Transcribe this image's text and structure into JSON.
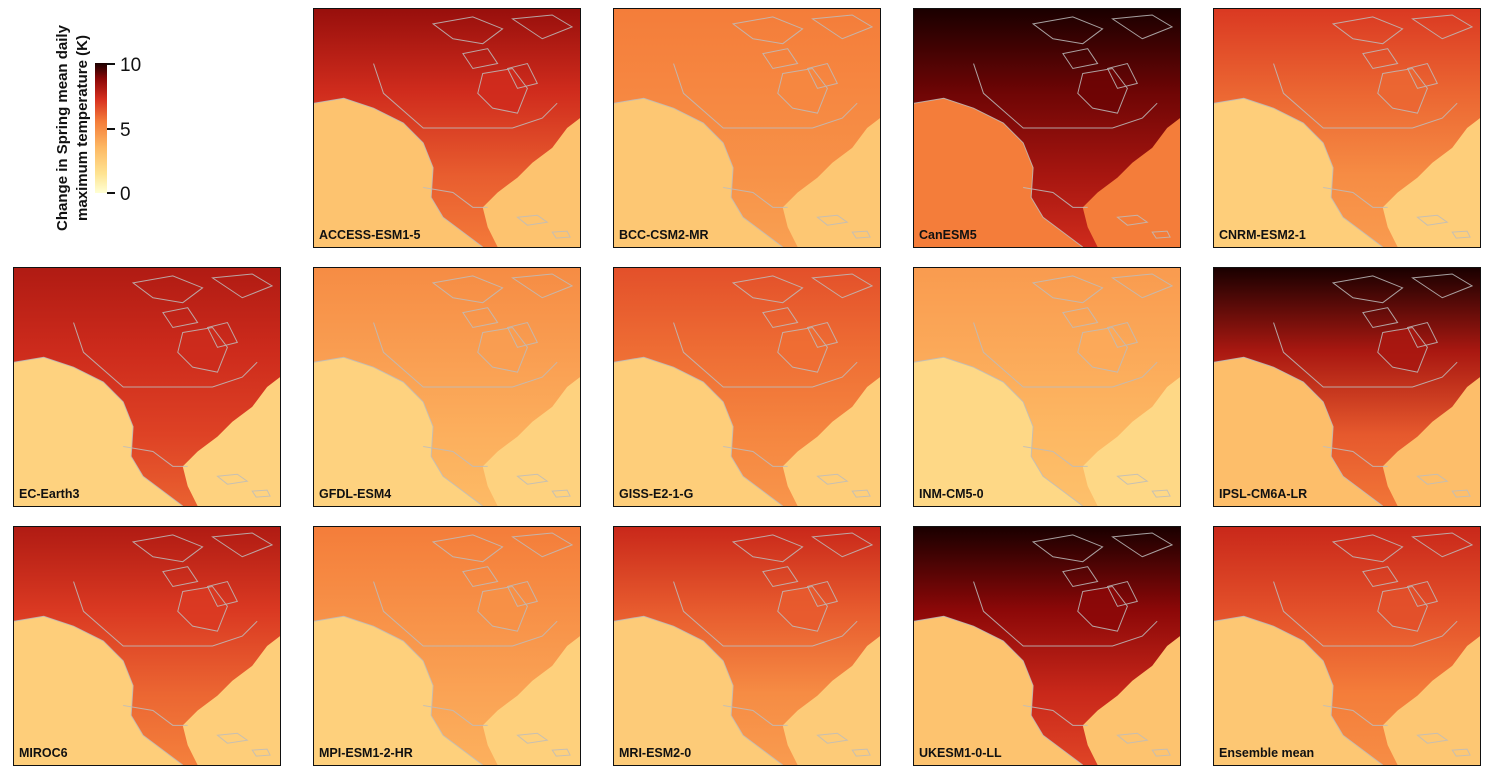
{
  "legend": {
    "title_line1": "Change in Spring mean daily",
    "title_line2": "maximum temperature (K)",
    "ticks": [
      "10",
      "5",
      "0"
    ],
    "scale_min": 0,
    "scale_max": 10,
    "colors": [
      "#ffffd4",
      "#fee391",
      "#fdb863",
      "#f47d3a",
      "#d7301f",
      "#8a0707",
      "#1a0000"
    ]
  },
  "panels": [
    {
      "label": "ACCESS-ESM1-5",
      "arctic": 8.5,
      "land": 6.2,
      "ocean": 3.0
    },
    {
      "label": "BCC-CSM2-MR",
      "arctic": 5.5,
      "land": 4.8,
      "ocean": 2.8
    },
    {
      "label": "CanESM5",
      "arctic": 10.0,
      "land": 8.2,
      "ocean": 5.5
    },
    {
      "label": "CNRM-ESM2-1",
      "arctic": 7.0,
      "land": 5.0,
      "ocean": 2.5
    },
    {
      "label": "EC-Earth3",
      "arctic": 8.0,
      "land": 6.8,
      "ocean": 2.3
    },
    {
      "label": "GFDL-ESM4",
      "arctic": 5.0,
      "land": 3.8,
      "ocean": 2.3
    },
    {
      "label": "GISS-E2-1-G",
      "arctic": 6.5,
      "land": 5.2,
      "ocean": 2.5
    },
    {
      "label": "INM-CM5-0",
      "arctic": 4.5,
      "land": 3.5,
      "ocean": 2.0
    },
    {
      "label": "IPSL-CM6A-LR",
      "arctic": 10.0,
      "land": 6.3,
      "ocean": 3.2
    },
    {
      "label": "MIROC6",
      "arctic": 8.0,
      "land": 6.0,
      "ocean": 2.5
    },
    {
      "label": "MPI-ESM1-2-HR",
      "arctic": 5.5,
      "land": 4.2,
      "ocean": 2.4
    },
    {
      "label": "MRI-ESM2-0",
      "arctic": 7.5,
      "land": 5.0,
      "ocean": 2.6
    },
    {
      "label": "UKESM1-0-LL",
      "arctic": 10.0,
      "land": 7.5,
      "ocean": 3.0
    },
    {
      "label": "Ensemble mean",
      "arctic": 7.5,
      "land": 5.5,
      "ocean": 2.8
    }
  ]
}
